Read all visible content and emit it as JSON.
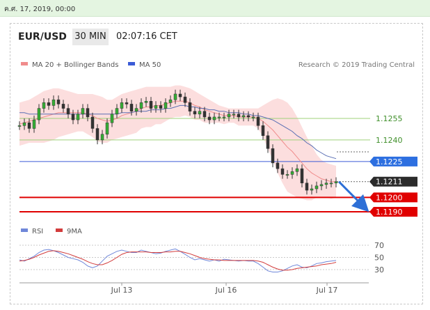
{
  "date_bar": "ค.ศ. 17, 2019, 00:00",
  "header": {
    "pair": "EUR/USD",
    "interval": "30 MIN",
    "time": "02:07:16 CET"
  },
  "colors": {
    "ma20": "#f08c8c",
    "bands": "#fbd6d6",
    "ma50": "#5a6fb4",
    "support": "#e00000",
    "resistance": "#3b5bd6",
    "level": "#9fd07a",
    "current": "#2b2b2b",
    "rsi": "#6f87d9",
    "ma9": "#d23c3c",
    "candle_up": "#35ad35",
    "candle_down": "#333333"
  },
  "chart_data": {
    "type": "line",
    "title": "",
    "legend": [
      {
        "name": "MA 20 + Bollinger Bands",
        "color": "#f08c8c"
      },
      {
        "name": "MA 50",
        "color": "#3b5bd6"
      }
    ],
    "source": "Research © 2019 Trading Central",
    "x_ticks": [
      "Jul 13",
      "Jul 16",
      "Jul 17"
    ],
    "ylim": [
      1.118,
      1.1285
    ],
    "price": [
      1.125,
      1.1252,
      1.1248,
      1.1254,
      1.1262,
      1.1266,
      1.1264,
      1.1268,
      1.1265,
      1.1262,
      1.1258,
      1.1254,
      1.1258,
      1.1262,
      1.1256,
      1.1248,
      1.124,
      1.1244,
      1.1252,
      1.1258,
      1.1262,
      1.1266,
      1.1265,
      1.126,
      1.1262,
      1.1266,
      1.1267,
      1.1262,
      1.1264,
      1.1262,
      1.1266,
      1.1268,
      1.1272,
      1.127,
      1.1266,
      1.126,
      1.1258,
      1.126,
      1.1256,
      1.1254,
      1.1256,
      1.1256,
      1.1256,
      1.1258,
      1.1258,
      1.1256,
      1.1257,
      1.1256,
      1.1256,
      1.125,
      1.1243,
      1.1234,
      1.1224,
      1.122,
      1.1216,
      1.1216,
      1.1218,
      1.122,
      1.121,
      1.1205,
      1.1206,
      1.1208,
      1.1209,
      1.121,
      1.121,
      1.1211
    ],
    "ma20": [
      1.1251,
      1.1252,
      1.1253,
      1.1254,
      1.1255,
      1.1256,
      1.1257,
      1.1258,
      1.1259,
      1.1259,
      1.1259,
      1.1259,
      1.1259,
      1.1259,
      1.1258,
      1.1257,
      1.1255,
      1.1254,
      1.1253,
      1.1254,
      1.1255,
      1.1257,
      1.1258,
      1.1259,
      1.126,
      1.1262,
      1.1263,
      1.1263,
      1.1264,
      1.1264,
      1.1265,
      1.1266,
      1.1267,
      1.1267,
      1.1267,
      1.1266,
      1.1264,
      1.1263,
      1.1261,
      1.126,
      1.1259,
      1.1258,
      1.1257,
      1.1257,
      1.1257,
      1.1256,
      1.1256,
      1.1256,
      1.1256,
      1.1255,
      1.1253,
      1.125,
      1.1247,
      1.1243,
      1.1239,
      1.1235,
      1.1232,
      1.1228,
      1.1224,
      1.122,
      1.1217,
      1.1215,
      1.1213,
      1.1212,
      1.1211,
      1.1211
    ],
    "bb_upper": [
      1.1266,
      1.1267,
      1.1268,
      1.127,
      1.1272,
      1.1274,
      1.1275,
      1.1276,
      1.1276,
      1.1275,
      1.1274,
      1.1273,
      1.1272,
      1.1272,
      1.1272,
      1.1272,
      1.1271,
      1.127,
      1.1268,
      1.1268,
      1.127,
      1.1272,
      1.1273,
      1.1274,
      1.1275,
      1.1276,
      1.1277,
      1.1277,
      1.1277,
      1.1277,
      1.1277,
      1.1277,
      1.1278,
      1.1278,
      1.1277,
      1.1276,
      1.1274,
      1.1272,
      1.127,
      1.1268,
      1.1266,
      1.1264,
      1.1263,
      1.1262,
      1.1262,
      1.1262,
      1.1262,
      1.1262,
      1.1262,
      1.1262,
      1.1264,
      1.1266,
      1.1268,
      1.1269,
      1.1268,
      1.1266,
      1.1262,
      1.1256,
      1.1249,
      1.1242,
      1.1236,
      1.123,
      1.1226,
      1.1224,
      1.1223,
      1.1222
    ],
    "bb_lower": [
      1.1236,
      1.1237,
      1.1238,
      1.1238,
      1.1238,
      1.1238,
      1.1239,
      1.124,
      1.1242,
      1.1243,
      1.1244,
      1.1245,
      1.1246,
      1.1246,
      1.1244,
      1.1242,
      1.1239,
      1.1238,
      1.1238,
      1.124,
      1.1241,
      1.1242,
      1.1243,
      1.1244,
      1.1245,
      1.1248,
      1.1249,
      1.1249,
      1.1251,
      1.1251,
      1.1253,
      1.1255,
      1.1256,
      1.1256,
      1.1257,
      1.1256,
      1.1254,
      1.1254,
      1.1252,
      1.1252,
      1.1252,
      1.1252,
      1.1251,
      1.1252,
      1.1252,
      1.125,
      1.125,
      1.125,
      1.125,
      1.1248,
      1.1242,
      1.1234,
      1.1226,
      1.1217,
      1.121,
      1.1204,
      1.1202,
      1.12,
      1.1199,
      1.1198,
      1.1198,
      1.12,
      1.12,
      1.12,
      1.1199,
      1.12
    ],
    "ma50": [
      1.1259,
      1.1259,
      1.1258,
      1.1258,
      1.1258,
      1.1258,
      1.1258,
      1.1258,
      1.1258,
      1.1258,
      1.1258,
      1.1258,
      1.1258,
      1.1258,
      1.1258,
      1.1258,
      1.1258,
      1.1258,
      1.1258,
      1.1258,
      1.1258,
      1.1259,
      1.1259,
      1.1259,
      1.126,
      1.126,
      1.126,
      1.1261,
      1.1261,
      1.1261,
      1.1262,
      1.1262,
      1.1263,
      1.1264,
      1.1264,
      1.1263,
      1.1263,
      1.1262,
      1.1262,
      1.1261,
      1.1261,
      1.126,
      1.126,
      1.1259,
      1.1259,
      1.1259,
      1.1258,
      1.1258,
      1.1257,
      1.1257,
      1.1256,
      1.1255,
      1.1254,
      1.1252,
      1.125,
      1.1248,
      1.1246,
      1.1243,
      1.1241,
      1.1238,
      1.1236,
      1.1233,
      1.1231,
      1.1229,
      1.1228,
      1.1227
    ],
    "levels": [
      {
        "value": 1.1255,
        "label": "1.1255",
        "kind": "level"
      },
      {
        "value": 1.124,
        "label": "1.1240",
        "kind": "level"
      },
      {
        "value": 1.1225,
        "label": "1.1225",
        "kind": "resistance"
      },
      {
        "value": 1.1211,
        "label": "1.1211",
        "kind": "current"
      },
      {
        "value": 1.12,
        "label": "1.1200",
        "kind": "support"
      },
      {
        "value": 1.119,
        "label": "1.1190",
        "kind": "support"
      }
    ],
    "forecast": {
      "from": 1.1211,
      "to": 1.1192
    },
    "rsi_panel": {
      "legend": [
        {
          "name": "RSI",
          "color": "#6f87d9"
        },
        {
          "name": "9MA",
          "color": "#d23c3c"
        }
      ],
      "ylim": [
        20,
        78
      ],
      "ticks": [
        70,
        50,
        30
      ],
      "rsi": [
        46,
        44,
        48,
        52,
        58,
        62,
        63,
        61,
        58,
        54,
        50,
        48,
        46,
        42,
        36,
        33,
        36,
        44,
        52,
        56,
        60,
        62,
        60,
        58,
        58,
        62,
        60,
        58,
        56,
        57,
        60,
        62,
        64,
        60,
        55,
        50,
        46,
        48,
        46,
        44,
        46,
        44,
        47,
        46,
        45,
        44,
        45,
        44,
        44,
        40,
        34,
        28,
        26,
        26,
        28,
        32,
        36,
        38,
        34,
        33,
        36,
        40,
        41,
        43,
        44,
        45
      ],
      "ma9": [
        44,
        45,
        47,
        50,
        54,
        57,
        60,
        61,
        60,
        58,
        56,
        53,
        50,
        47,
        43,
        40,
        38,
        38,
        41,
        45,
        50,
        55,
        58,
        59,
        59,
        59,
        59,
        58,
        58,
        58,
        59,
        59,
        60,
        60,
        58,
        56,
        53,
        50,
        48,
        47,
        46,
        46,
        45,
        45,
        45,
        45,
        45,
        45,
        45,
        44,
        42,
        38,
        34,
        31,
        29,
        29,
        30,
        32,
        33,
        34,
        35,
        36,
        38,
        39,
        40,
        42
      ]
    }
  }
}
